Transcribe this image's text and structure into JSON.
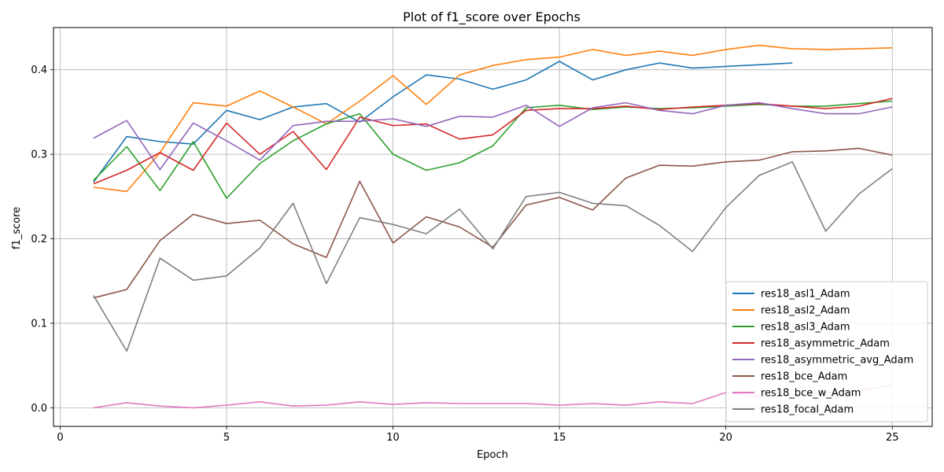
{
  "chart_data": {
    "type": "line",
    "title": "Plot of f1_score over Epochs",
    "xlabel": "Epoch",
    "ylabel": "f1_score",
    "xlim": [
      -0.2,
      26.2
    ],
    "ylim": [
      -0.022,
      0.45
    ],
    "xticks": [
      0,
      5,
      10,
      15,
      20,
      25
    ],
    "yticks": [
      0.0,
      0.1,
      0.2,
      0.3,
      0.4
    ],
    "xtick_labels": [
      "0",
      "5",
      "10",
      "15",
      "20",
      "25"
    ],
    "ytick_labels": [
      "0.0",
      "0.1",
      "0.2",
      "0.3",
      "0.4"
    ],
    "grid": true,
    "legend_position": "lower-right",
    "series": [
      {
        "name": "res18_asl1_Adam",
        "color": "#1f77b4",
        "x": [
          1,
          2,
          3,
          4,
          5,
          6,
          7,
          8,
          9,
          10,
          11,
          12,
          13,
          14,
          15,
          16,
          17,
          18,
          19,
          20,
          21,
          22
        ],
        "values": [
          0.267,
          0.321,
          0.315,
          0.312,
          0.352,
          0.341,
          0.356,
          0.36,
          0.338,
          0.368,
          0.394,
          0.389,
          0.377,
          0.388,
          0.41,
          0.388,
          0.4,
          0.408,
          0.402,
          0.404,
          0.406,
          0.408
        ]
      },
      {
        "name": "res18_asl2_Adam",
        "color": "#ff7f0e",
        "x": [
          1,
          2,
          3,
          4,
          5,
          6,
          7,
          8,
          9,
          10,
          11,
          12,
          13,
          14,
          15,
          16,
          17,
          18,
          19,
          20,
          21,
          22,
          23,
          24,
          25
        ],
        "values": [
          0.261,
          0.256,
          0.302,
          0.361,
          0.357,
          0.375,
          0.356,
          0.336,
          0.363,
          0.393,
          0.359,
          0.394,
          0.405,
          0.412,
          0.415,
          0.424,
          0.417,
          0.422,
          0.417,
          0.424,
          0.429,
          0.425,
          0.424,
          0.425,
          0.426
        ]
      },
      {
        "name": "res18_asl3_Adam",
        "color": "#2ca02c",
        "x": [
          1,
          2,
          3,
          4,
          5,
          6,
          7,
          8,
          9,
          10,
          11,
          12,
          13,
          14,
          15,
          16,
          17,
          18,
          19,
          20,
          21,
          22,
          23,
          24,
          25
        ],
        "values": [
          0.269,
          0.309,
          0.257,
          0.315,
          0.248,
          0.289,
          0.316,
          0.336,
          0.348,
          0.3,
          0.281,
          0.29,
          0.31,
          0.355,
          0.358,
          0.353,
          0.356,
          0.354,
          0.355,
          0.357,
          0.359,
          0.357,
          0.357,
          0.36,
          0.363
        ]
      },
      {
        "name": "res18_asymmetric_Adam",
        "color": "#d62728",
        "x": [
          1,
          2,
          3,
          4,
          5,
          6,
          7,
          8,
          9,
          10,
          11,
          12,
          13,
          14,
          15,
          16,
          17,
          18,
          19,
          20,
          21,
          22,
          23,
          24,
          25
        ],
        "values": [
          0.265,
          0.281,
          0.302,
          0.281,
          0.337,
          0.3,
          0.327,
          0.282,
          0.344,
          0.334,
          0.336,
          0.318,
          0.323,
          0.352,
          0.354,
          0.354,
          0.357,
          0.353,
          0.356,
          0.358,
          0.36,
          0.357,
          0.354,
          0.357,
          0.366
        ]
      },
      {
        "name": "res18_asymmetric_avg_Adam",
        "color": "#9467bd",
        "x": [
          1,
          2,
          3,
          4,
          5,
          6,
          7,
          8,
          9,
          10,
          11,
          12,
          13,
          14,
          15,
          16,
          17,
          18,
          19,
          20,
          21,
          22,
          23,
          24,
          25
        ],
        "values": [
          0.319,
          0.34,
          0.282,
          0.337,
          0.316,
          0.293,
          0.334,
          0.339,
          0.339,
          0.342,
          0.333,
          0.345,
          0.344,
          0.358,
          0.333,
          0.355,
          0.361,
          0.352,
          0.348,
          0.358,
          0.361,
          0.354,
          0.348,
          0.348,
          0.356
        ]
      },
      {
        "name": "res18_bce_Adam",
        "color": "#8c564b",
        "x": [
          1,
          2,
          3,
          4,
          5,
          6,
          7,
          8,
          9,
          10,
          11,
          12,
          13,
          14,
          15,
          16,
          17,
          18,
          19,
          20,
          21,
          22,
          23,
          24,
          25
        ],
        "values": [
          0.13,
          0.14,
          0.198,
          0.229,
          0.218,
          0.222,
          0.194,
          0.178,
          0.268,
          0.195,
          0.226,
          0.214,
          0.19,
          0.24,
          0.249,
          0.234,
          0.272,
          0.287,
          0.286,
          0.291,
          0.293,
          0.303,
          0.304,
          0.307,
          0.299
        ]
      },
      {
        "name": "res18_bce_w_Adam",
        "color": "#e377c2",
        "x": [
          1,
          2,
          3,
          4,
          5,
          6,
          7,
          8,
          9,
          10,
          11,
          12,
          13,
          14,
          15,
          16,
          17,
          18,
          19,
          20,
          21,
          22,
          23,
          24,
          25
        ],
        "values": [
          0.0,
          0.006,
          0.002,
          0.0,
          0.003,
          0.007,
          0.002,
          0.003,
          0.007,
          0.004,
          0.006,
          0.005,
          0.005,
          0.005,
          0.003,
          0.005,
          0.003,
          0.007,
          0.005,
          0.018,
          0.013,
          0.015,
          0.018,
          0.02,
          0.027
        ]
      },
      {
        "name": "res18_focal_Adam",
        "color": "#7f7f7f",
        "x": [
          1,
          2,
          3,
          4,
          5,
          6,
          7,
          8,
          9,
          10,
          11,
          12,
          13,
          14,
          15,
          16,
          17,
          18,
          19,
          20,
          21,
          22,
          23,
          24,
          25
        ],
        "values": [
          0.133,
          0.067,
          0.177,
          0.151,
          0.156,
          0.189,
          0.242,
          0.147,
          0.225,
          0.217,
          0.206,
          0.235,
          0.188,
          0.25,
          0.255,
          0.242,
          0.239,
          0.216,
          0.185,
          0.237,
          0.275,
          0.291,
          0.209,
          0.253,
          0.283
        ]
      }
    ]
  }
}
